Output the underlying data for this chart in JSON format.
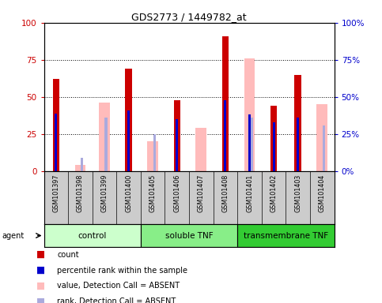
{
  "title": "GDS2773 / 1449782_at",
  "samples": [
    "GSM101397",
    "GSM101398",
    "GSM101399",
    "GSM101400",
    "GSM101405",
    "GSM101406",
    "GSM101407",
    "GSM101408",
    "GSM101401",
    "GSM101402",
    "GSM101403",
    "GSM101404"
  ],
  "groups": [
    {
      "label": "control",
      "start": 0,
      "end": 4,
      "color": "#ccffcc"
    },
    {
      "label": "soluble TNF",
      "start": 4,
      "end": 8,
      "color": "#88ee88"
    },
    {
      "label": "transmembrane TNF",
      "start": 8,
      "end": 12,
      "color": "#33cc33"
    }
  ],
  "count": [
    62,
    0,
    0,
    69,
    0,
    48,
    0,
    91,
    0,
    44,
    65,
    0
  ],
  "percentile_rank": [
    39,
    0,
    0,
    41,
    0,
    35,
    0,
    48,
    38,
    33,
    36,
    0
  ],
  "value_absent": [
    0,
    4,
    46,
    0,
    20,
    0,
    29,
    0,
    76,
    0,
    0,
    45
  ],
  "rank_absent": [
    0,
    9,
    36,
    0,
    25,
    0,
    0,
    0,
    36,
    0,
    33,
    31
  ],
  "count_color": "#cc0000",
  "percentile_color": "#0000cc",
  "value_absent_color": "#ffbbbb",
  "rank_absent_color": "#aaaadd",
  "ymax": 100,
  "yticks": [
    0,
    25,
    50,
    75,
    100
  ],
  "label_bg": "#cccccc",
  "plot_bg": "#ffffff"
}
